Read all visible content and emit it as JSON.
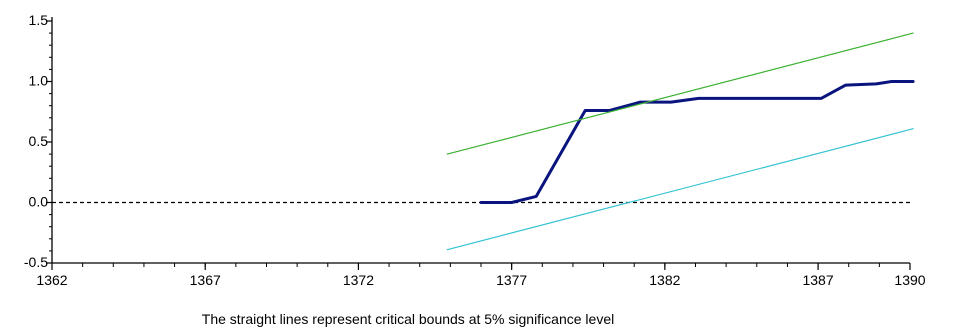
{
  "chart_data": {
    "type": "line",
    "title": "",
    "caption": "The straight lines represent critical bounds at 5% significance level",
    "xlabel": "",
    "ylabel": "",
    "xlim": [
      1362,
      1390
    ],
    "ylim": [
      -0.5,
      1.5
    ],
    "x_ticks": [
      {
        "value": 1362,
        "label": "1362"
      },
      {
        "value": 1367,
        "label": "1367"
      },
      {
        "value": 1372,
        "label": "1372"
      },
      {
        "value": 1377,
        "label": "1377"
      },
      {
        "value": 1382,
        "label": "1382"
      },
      {
        "value": 1387,
        "label": "1387"
      },
      {
        "value": 1390,
        "label": "1390"
      }
    ],
    "y_ticks": [
      {
        "value": 1.5,
        "label": "1.5"
      },
      {
        "value": 1.0,
        "label": "1.0"
      },
      {
        "value": 0.5,
        "label": "0.5"
      },
      {
        "value": 0.0,
        "label": "0.0"
      },
      {
        "value": -0.5,
        "label": "-0.5"
      }
    ],
    "grid": false,
    "reference_line": {
      "y": 0.0,
      "style": "dashed",
      "color": "#000000"
    },
    "series": [
      {
        "role": "statistic",
        "color": "#0a147e",
        "points": [
          [
            1376,
            0.0
          ],
          [
            1377,
            0.0
          ],
          [
            1377.8,
            0.05
          ],
          [
            1379.4,
            0.76
          ],
          [
            1380.2,
            0.76
          ],
          [
            1381.2,
            0.83
          ],
          [
            1382.2,
            0.83
          ],
          [
            1383.1,
            0.86
          ],
          [
            1387.1,
            0.86
          ],
          [
            1387.9,
            0.97
          ],
          [
            1388.9,
            0.98
          ],
          [
            1389.4,
            1.0
          ],
          [
            1390.1,
            1.0
          ]
        ]
      },
      {
        "role": "upper-bound",
        "color": "#3db233",
        "points": [
          [
            1374.9,
            0.4
          ],
          [
            1390.1,
            1.4
          ]
        ]
      },
      {
        "role": "lower-bound",
        "color": "#33c3d1",
        "points": [
          [
            1374.9,
            -0.39
          ],
          [
            1390.1,
            0.61
          ]
        ]
      }
    ]
  }
}
